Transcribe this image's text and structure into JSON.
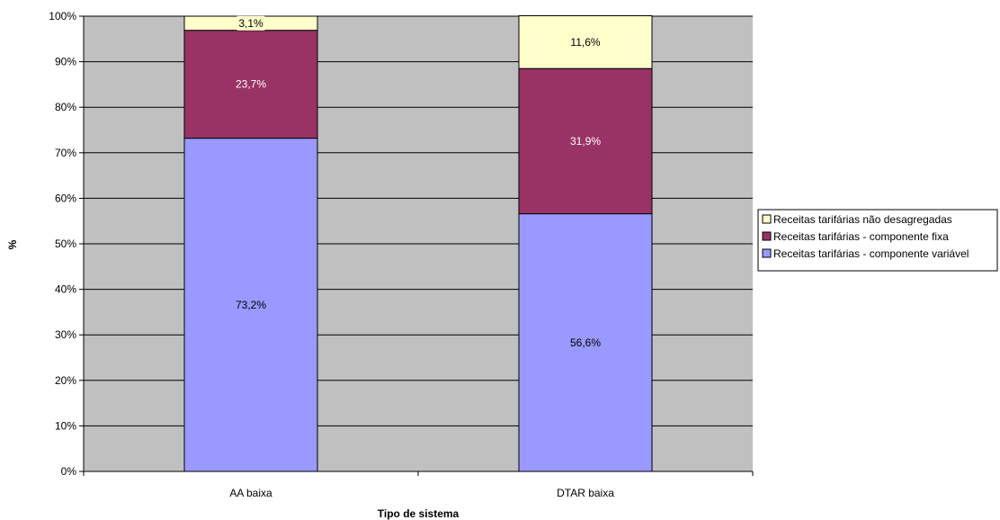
{
  "chart_data": {
    "type": "bar",
    "stacked": "percent",
    "categories": [
      "AA baixa",
      "DTAR baixa"
    ],
    "series": [
      {
        "name": "Receitas tarifárias - componente variável",
        "values": [
          73.2,
          56.6
        ],
        "labels": [
          "73,2%",
          "56,6%"
        ],
        "color": "#9999ff",
        "label_color": "#000000",
        "label_box": true
      },
      {
        "name": "Receitas tarifárias - componente fixa",
        "values": [
          23.7,
          31.9
        ],
        "labels": [
          "23,7%",
          "31,9%"
        ],
        "color": "#993366",
        "label_color": "#ffffff",
        "label_box": false
      },
      {
        "name": "Receitas tarifárias não desagregadas",
        "values": [
          3.1,
          11.6
        ],
        "labels": [
          "3,1%",
          "11,6%"
        ],
        "color": "#ffffcc",
        "label_color": "#000000",
        "label_box": true
      }
    ],
    "legend_order": [
      2,
      1,
      0
    ],
    "xlabel": "Tipo de sistema",
    "ylabel": "%",
    "ylim": [
      0,
      100
    ],
    "yticks": [
      "0%",
      "10%",
      "20%",
      "30%",
      "40%",
      "50%",
      "60%",
      "70%",
      "80%",
      "90%",
      "100%"
    ],
    "grid": true,
    "plot_background": "#c0c0c0",
    "legend_position": "right"
  }
}
